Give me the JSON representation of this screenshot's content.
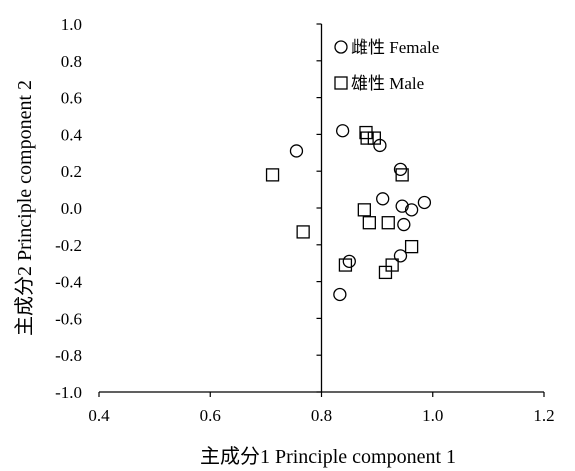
{
  "chart_data": {
    "type": "scatter",
    "title": "",
    "xlabel": "主成分1 Principle component 1",
    "ylabel": "主成分2 Principle component 2",
    "xlim": [
      0.4,
      1.2
    ],
    "ylim": [
      -1.0,
      1.0
    ],
    "x_ticks": [
      "0.4",
      "0.6",
      "0.8",
      "1.0",
      "1.2"
    ],
    "y_ticks": [
      "1.0",
      "0.8",
      "0.6",
      "0.4",
      "0.2",
      "0.0",
      "-0.2",
      "-0.4",
      "-0.6",
      "-0.8",
      "-1.0"
    ],
    "grid": false,
    "legend_position": "top-right",
    "series": [
      {
        "name": "雌性 Female",
        "marker": "circle",
        "x": [
          0.755,
          0.838,
          0.905,
          0.942,
          0.91,
          0.945,
          0.962,
          0.985,
          0.948,
          0.85,
          0.942,
          0.833
        ],
        "y": [
          0.31,
          0.42,
          0.34,
          0.21,
          0.05,
          0.01,
          -0.01,
          0.03,
          -0.09,
          -0.29,
          -0.26,
          -0.47
        ]
      },
      {
        "name": "雄性 Male",
        "marker": "square",
        "x": [
          0.88,
          0.895,
          0.882,
          0.712,
          0.945,
          0.877,
          0.886,
          0.92,
          0.767,
          0.962,
          0.927,
          0.843,
          0.915
        ],
        "y": [
          0.41,
          0.38,
          0.38,
          0.18,
          0.18,
          -0.01,
          -0.08,
          -0.08,
          -0.13,
          -0.21,
          -0.31,
          -0.31,
          -0.35
        ]
      }
    ]
  }
}
